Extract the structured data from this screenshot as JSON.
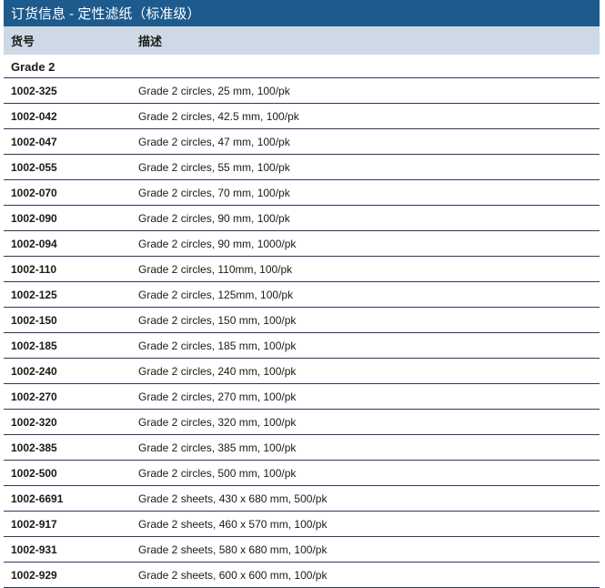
{
  "colors": {
    "title_bg": "#1d5a8d",
    "title_text": "#ffffff",
    "header_bg": "#cdd9e4",
    "header_text": "#1a1a1a",
    "row_border": "#2f3a5a",
    "section_text": "#1a1a1a",
    "code_text": "#1a1a1a",
    "desc_text": "#1a1a1a",
    "body_bg": "#ffffff"
  },
  "title": "订货信息 - 定性滤纸（标准级）",
  "columns": {
    "code": "货号",
    "desc": "描述"
  },
  "section_heading": "Grade 2",
  "rows": [
    {
      "code": "1002-325",
      "desc": "Grade 2 circles, 25 mm, 100/pk"
    },
    {
      "code": "1002-042",
      "desc": "Grade 2 circles, 42.5 mm, 100/pk"
    },
    {
      "code": "1002-047",
      "desc": "Grade 2 circles, 47 mm, 100/pk"
    },
    {
      "code": "1002-055",
      "desc": "Grade 2 circles, 55 mm, 100/pk"
    },
    {
      "code": "1002-070",
      "desc": "Grade 2 circles, 70 mm, 100/pk"
    },
    {
      "code": "1002-090",
      "desc": "Grade 2 circles, 90 mm, 100/pk"
    },
    {
      "code": "1002-094",
      "desc": "Grade 2 circles, 90 mm, 1000/pk"
    },
    {
      "code": "1002-110",
      "desc": "Grade 2 circles, 110mm, 100/pk"
    },
    {
      "code": "1002-125",
      "desc": "Grade 2 circles, 125mm, 100/pk"
    },
    {
      "code": "1002-150",
      "desc": "Grade 2 circles, 150 mm, 100/pk"
    },
    {
      "code": "1002-185",
      "desc": "Grade 2 circles, 185 mm, 100/pk"
    },
    {
      "code": "1002-240",
      "desc": "Grade 2 circles, 240 mm, 100/pk"
    },
    {
      "code": "1002-270",
      "desc": "Grade 2 circles, 270 mm, 100/pk"
    },
    {
      "code": "1002-320",
      "desc": "Grade 2 circles, 320 mm, 100/pk"
    },
    {
      "code": "1002-385",
      "desc": "Grade 2 circles, 385 mm, 100/pk"
    },
    {
      "code": "1002-500",
      "desc": "Grade 2 circles, 500 mm, 100/pk"
    },
    {
      "code": "1002-6691",
      "desc": "Grade 2 sheets, 430 x 680 mm, 500/pk"
    },
    {
      "code": "1002-917",
      "desc": "Grade 2 sheets, 460 x 570 mm, 100/pk"
    },
    {
      "code": "1002-931",
      "desc": "Grade 2 sheets, 580 x 680 mm, 100/pk"
    },
    {
      "code": "1002-929",
      "desc": "Grade 2 sheets, 600 x 600 mm, 100/pk"
    }
  ]
}
